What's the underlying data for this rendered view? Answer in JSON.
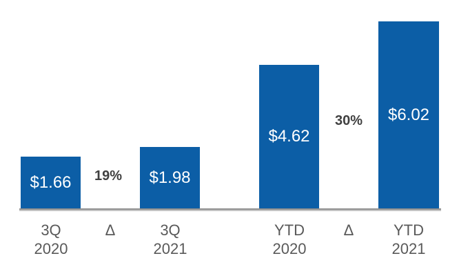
{
  "colors": {
    "bar": "#0c5ea6",
    "value_label": "#ffffff",
    "delta_label": "#404040",
    "axis_label": "#595959",
    "axis_line": "#8f8f8f",
    "axis_line_shadow": "#c4c4c4",
    "background": "#ffffff"
  },
  "chart_data": {
    "type": "bar",
    "title": "",
    "xlabel": "",
    "ylabel": "",
    "categories": [
      "3Q 2020",
      "Δ",
      "3Q 2021",
      "YTD 2020",
      "Δ",
      "YTD 2021"
    ],
    "series": [
      {
        "name": "values",
        "values": [
          1.66,
          1.98,
          4.62,
          6.02
        ]
      }
    ],
    "value_labels": [
      "$1.66",
      "$1.98",
      "$4.62",
      "$6.02"
    ],
    "delta_labels": [
      "19%",
      "30%"
    ],
    "x_labels": [
      {
        "line1": "3Q",
        "line2": "2020"
      },
      {
        "line1": "Δ",
        "line2": ""
      },
      {
        "line1": "3Q",
        "line2": "2021"
      },
      {
        "line1": "YTD",
        "line2": "2020"
      },
      {
        "line1": "Δ",
        "line2": ""
      },
      {
        "line1": "YTD",
        "line2": "2021"
      }
    ],
    "ylim": [
      0,
      6.1
    ],
    "grid": false,
    "legend": false,
    "value_label_position": "inside-center",
    "pixels_per_unit": 45
  }
}
